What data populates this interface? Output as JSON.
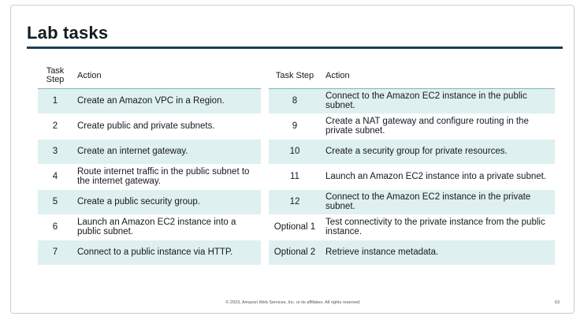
{
  "slide": {
    "title": "Lab tasks",
    "footer": "© 2023, Amazon Web Services, Inc. or its affiliates. All rights reserved.",
    "page_number": "63"
  },
  "left_table": {
    "header_step": "Task Step",
    "header_action": "Action",
    "rows": [
      {
        "step": "1",
        "action": "Create an Amazon VPC in a Region."
      },
      {
        "step": "2",
        "action": "Create public and private subnets."
      },
      {
        "step": "3",
        "action": "Create an internet gateway."
      },
      {
        "step": "4",
        "action": "Route internet traffic in the public subnet to the internet gateway."
      },
      {
        "step": "5",
        "action": "Create a public security group."
      },
      {
        "step": "6",
        "action": "Launch an Amazon EC2 instance into a public subnet."
      },
      {
        "step": "7",
        "action": "Connect to a public instance via HTTP."
      }
    ]
  },
  "right_table": {
    "header_step": "Task Step",
    "header_action": "Action",
    "rows": [
      {
        "step": "8",
        "action": "Connect to the Amazon EC2 instance in the public subnet."
      },
      {
        "step": "9",
        "action": "Create a NAT gateway and configure routing in the private subnet."
      },
      {
        "step": "10",
        "action": "Create a security group for private resources."
      },
      {
        "step": "11",
        "action": "Launch an Amazon EC2 instance into a private subnet."
      },
      {
        "step": "12",
        "action": "Connect to the Amazon EC2 instance in the private subnet."
      },
      {
        "step": "Optional 1",
        "action": "Test connectivity to the private instance from the public instance."
      },
      {
        "step": "Optional 2",
        "action": "Retrieve instance metadata."
      }
    ]
  },
  "colors": {
    "title_rule": "#1c3f52",
    "row_shade": "#dff0f1",
    "header_rule": "#7fb3b8"
  }
}
